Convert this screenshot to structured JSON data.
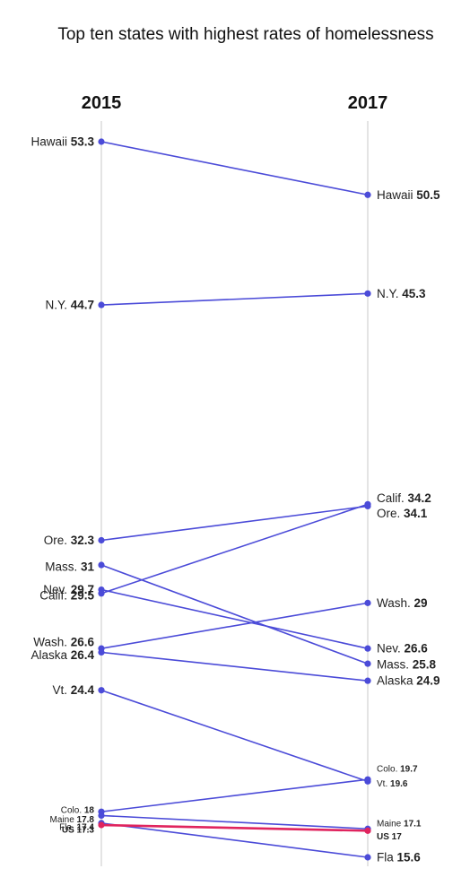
{
  "chart_data": {
    "type": "slope",
    "title": "Top ten states with highest rates of homelessness",
    "columns": [
      "2015",
      "2017"
    ],
    "series_color": "#4b4bd8",
    "highlight_color": "#e0245e",
    "series": [
      {
        "label_2015": "Hawaii",
        "label_2017": "Hawaii",
        "v2015": 53.3,
        "v2017": 50.5,
        "v2015_text": "53.3",
        "v2017_text": "50.5"
      },
      {
        "label_2015": "N.Y.",
        "label_2017": "N.Y.",
        "v2015": 44.7,
        "v2017": 45.3,
        "v2015_text": "44.7",
        "v2017_text": "45.3"
      },
      {
        "label_2015": "Ore.",
        "label_2017": "Ore.",
        "v2015": 32.3,
        "v2017": 34.1,
        "v2015_text": "32.3",
        "v2017_text": "34.1"
      },
      {
        "label_2015": "Mass.",
        "label_2017": "Mass.",
        "v2015": 31,
        "v2017": 25.8,
        "v2015_text": "31",
        "v2017_text": "25.8"
      },
      {
        "label_2015": "Nev.",
        "label_2017": "Nev.",
        "v2015": 29.7,
        "v2017": 26.6,
        "v2015_text": "29.7",
        "v2017_text": "26.6"
      },
      {
        "label_2015": "Calif.",
        "label_2017": "Calif.",
        "v2015": 29.5,
        "v2017": 34.2,
        "v2015_text": "29.5",
        "v2017_text": "34.2"
      },
      {
        "label_2015": "Wash.",
        "label_2017": "Wash.",
        "v2015": 26.6,
        "v2017": 29,
        "v2015_text": "26.6",
        "v2017_text": "29"
      },
      {
        "label_2015": "Alaska",
        "label_2017": "Alaska",
        "v2015": 26.4,
        "v2017": 24.9,
        "v2015_text": "26.4",
        "v2017_text": "24.9"
      },
      {
        "label_2015": "Vt.",
        "label_2017": "Vt.",
        "v2015": 24.4,
        "v2017": 19.6,
        "v2015_text": "24.4",
        "v2017_text": "19.6"
      },
      {
        "label_2015": "Colo.",
        "label_2017": "Colo.",
        "v2015": 18,
        "v2017": 19.7,
        "v2015_text": "18",
        "v2017_text": "19.7"
      },
      {
        "label_2015": "Maine",
        "label_2017": "Maine",
        "v2015": 17.8,
        "v2017": 17.1,
        "v2015_text": "17.8",
        "v2017_text": "17.1"
      },
      {
        "label_2015": "Fla.",
        "label_2017": "Fla",
        "v2015": 17.4,
        "v2017": 15.6,
        "v2015_text": "17.4",
        "v2017_text": "15.6"
      },
      {
        "label_2015": "US",
        "label_2017": "US",
        "v2015": 17.3,
        "v2017": 17,
        "v2015_text": "17.3",
        "v2017_text": "17",
        "highlight": true
      }
    ]
  }
}
